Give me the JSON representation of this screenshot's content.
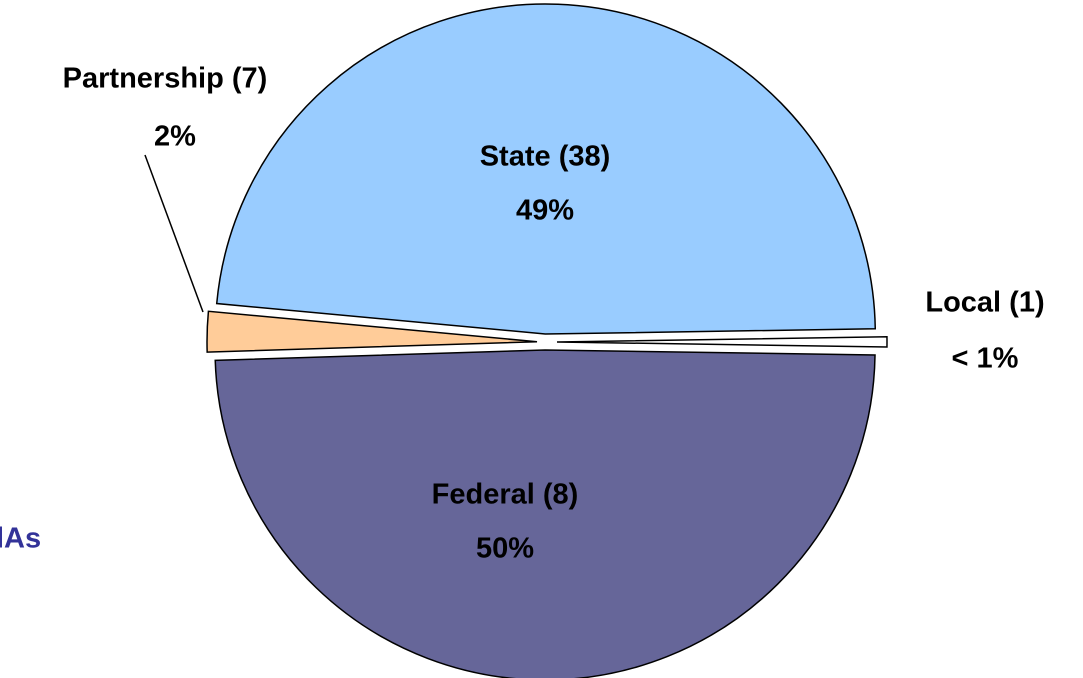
{
  "chart_data": {
    "type": "pie",
    "categories": [
      "State (38)",
      "Local (1)",
      "Federal (8)",
      "Partnership (7)"
    ],
    "values": [
      49,
      0.5,
      50,
      2
    ],
    "value_labels": [
      "49%",
      "< 1%",
      "50%",
      "2%"
    ],
    "colors": [
      "#99ccff",
      "#ffffff",
      "#666699",
      "#ffcc99"
    ],
    "annotation": "lAs"
  }
}
